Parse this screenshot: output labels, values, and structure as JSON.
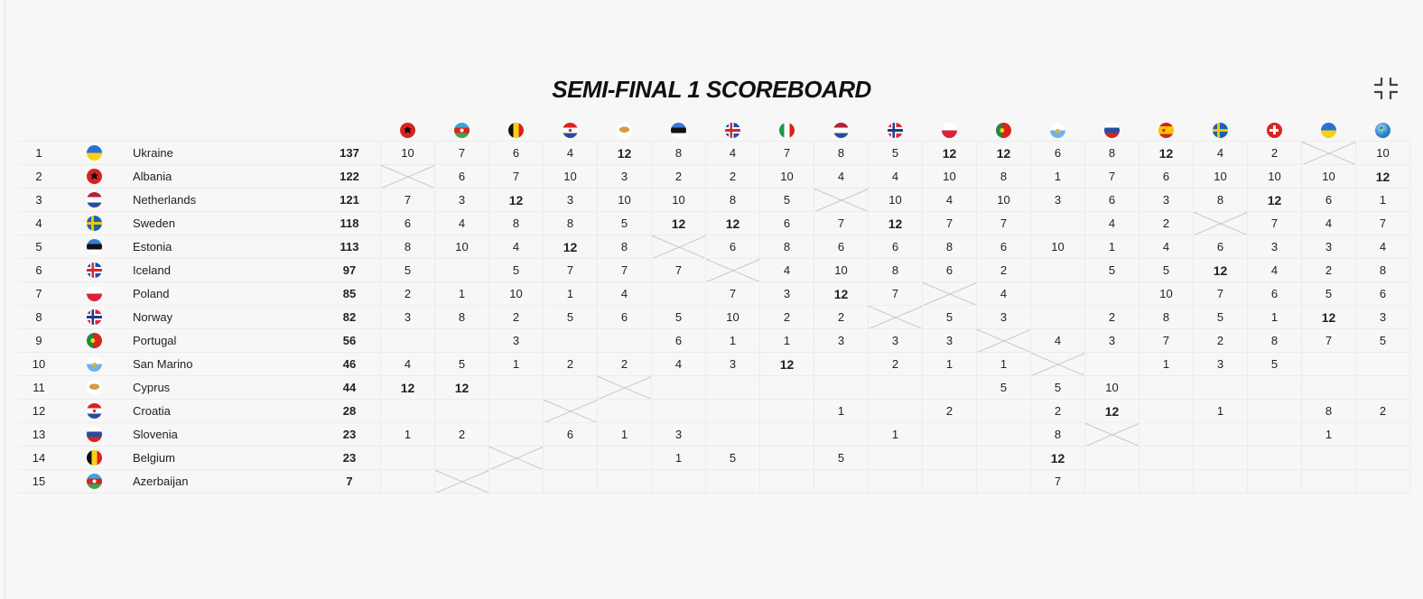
{
  "title": "SEMI-FINAL 1 SCOREBOARD",
  "collapse_icon": "compress-icon",
  "columns": [
    {
      "name": "Albania",
      "icon": "flag-albania-icon"
    },
    {
      "name": "Azerbaijan",
      "icon": "flag-azerbaijan-icon"
    },
    {
      "name": "Belgium",
      "icon": "flag-belgium-icon"
    },
    {
      "name": "Croatia",
      "icon": "flag-croatia-icon"
    },
    {
      "name": "Cyprus",
      "icon": "flag-cyprus-icon"
    },
    {
      "name": "Estonia",
      "icon": "flag-estonia-icon"
    },
    {
      "name": "Iceland",
      "icon": "flag-iceland-icon"
    },
    {
      "name": "Italy",
      "icon": "flag-italy-icon"
    },
    {
      "name": "Netherlands",
      "icon": "flag-netherlands-icon"
    },
    {
      "name": "Norway",
      "icon": "flag-norway-icon"
    },
    {
      "name": "Poland",
      "icon": "flag-poland-icon"
    },
    {
      "name": "Portugal",
      "icon": "flag-portugal-icon"
    },
    {
      "name": "San Marino",
      "icon": "flag-san-marino-icon"
    },
    {
      "name": "Slovenia",
      "icon": "flag-slovenia-icon"
    },
    {
      "name": "Spain",
      "icon": "flag-spain-icon"
    },
    {
      "name": "Sweden",
      "icon": "flag-sweden-icon"
    },
    {
      "name": "Switzerland",
      "icon": "flag-switzerland-icon"
    },
    {
      "name": "Ukraine",
      "icon": "flag-ukraine-icon"
    },
    {
      "name": "Rest of the World",
      "icon": "globe-icon"
    }
  ],
  "rows": [
    {
      "pos": "1",
      "country": "Ukraine",
      "flag": "flag-ukraine-icon",
      "total": "137",
      "self": 17,
      "points": [
        "10",
        "7",
        "6",
        "4",
        "12",
        "8",
        "4",
        "7",
        "8",
        "5",
        "12",
        "12",
        "6",
        "8",
        "12",
        "4",
        "2",
        "",
        "10"
      ]
    },
    {
      "pos": "2",
      "country": "Albania",
      "flag": "flag-albania-icon",
      "total": "122",
      "self": 0,
      "points": [
        "",
        "6",
        "7",
        "10",
        "3",
        "2",
        "2",
        "10",
        "4",
        "4",
        "10",
        "8",
        "1",
        "7",
        "6",
        "10",
        "10",
        "10",
        "12"
      ]
    },
    {
      "pos": "3",
      "country": "Netherlands",
      "flag": "flag-netherlands-icon",
      "total": "121",
      "self": 8,
      "points": [
        "7",
        "3",
        "12",
        "3",
        "10",
        "10",
        "8",
        "5",
        "",
        "10",
        "4",
        "10",
        "3",
        "6",
        "3",
        "8",
        "12",
        "6",
        "1"
      ]
    },
    {
      "pos": "4",
      "country": "Sweden",
      "flag": "flag-sweden-icon",
      "total": "118",
      "self": 15,
      "points": [
        "6",
        "4",
        "8",
        "8",
        "5",
        "12",
        "12",
        "6",
        "7",
        "12",
        "7",
        "7",
        "",
        "4",
        "2",
        "",
        "7",
        "4",
        "7"
      ]
    },
    {
      "pos": "5",
      "country": "Estonia",
      "flag": "flag-estonia-icon",
      "total": "113",
      "self": 5,
      "points": [
        "8",
        "10",
        "4",
        "12",
        "8",
        "",
        "6",
        "8",
        "6",
        "6",
        "8",
        "6",
        "10",
        "1",
        "4",
        "6",
        "3",
        "3",
        "4"
      ]
    },
    {
      "pos": "6",
      "country": "Iceland",
      "flag": "flag-iceland-icon",
      "total": "97",
      "self": 6,
      "points": [
        "5",
        "",
        "5",
        "7",
        "7",
        "7",
        "",
        "4",
        "10",
        "8",
        "6",
        "2",
        "",
        "5",
        "5",
        "12",
        "4",
        "2",
        "8"
      ]
    },
    {
      "pos": "7",
      "country": "Poland",
      "flag": "flag-poland-icon",
      "total": "85",
      "self": 10,
      "points": [
        "2",
        "1",
        "10",
        "1",
        "4",
        "",
        "7",
        "3",
        "12",
        "7",
        "",
        "4",
        "",
        "",
        "10",
        "7",
        "6",
        "5",
        "6"
      ]
    },
    {
      "pos": "8",
      "country": "Norway",
      "flag": "flag-norway-icon",
      "total": "82",
      "self": 9,
      "points": [
        "3",
        "8",
        "2",
        "5",
        "6",
        "5",
        "10",
        "2",
        "2",
        "",
        "5",
        "3",
        "",
        "2",
        "8",
        "5",
        "1",
        "12",
        "3"
      ]
    },
    {
      "pos": "9",
      "country": "Portugal",
      "flag": "flag-portugal-icon",
      "total": "56",
      "self": 11,
      "points": [
        "",
        "",
        "3",
        "",
        "",
        "6",
        "1",
        "1",
        "3",
        "3",
        "3",
        "",
        "4",
        "3",
        "7",
        "2",
        "8",
        "7",
        "5"
      ]
    },
    {
      "pos": "10",
      "country": "San Marino",
      "flag": "flag-san-marino-icon",
      "total": "46",
      "self": 12,
      "points": [
        "4",
        "5",
        "1",
        "2",
        "2",
        "4",
        "3",
        "12",
        "",
        "2",
        "1",
        "1",
        "",
        "",
        "1",
        "3",
        "5",
        "",
        ""
      ]
    },
    {
      "pos": "11",
      "country": "Cyprus",
      "flag": "flag-cyprus-icon",
      "total": "44",
      "self": 4,
      "points": [
        "12",
        "12",
        "",
        "",
        "",
        "",
        "",
        "",
        "",
        "",
        "",
        "5",
        "5",
        "10",
        "",
        "",
        "",
        "",
        ""
      ]
    },
    {
      "pos": "12",
      "country": "Croatia",
      "flag": "flag-croatia-icon",
      "total": "28",
      "self": 3,
      "points": [
        "",
        "",
        "",
        "",
        "",
        "",
        "",
        "",
        "1",
        "",
        "2",
        "",
        "2",
        "12",
        "",
        "1",
        "",
        "8",
        "2"
      ]
    },
    {
      "pos": "13",
      "country": "Slovenia",
      "flag": "flag-slovenia-icon",
      "total": "23",
      "self": 13,
      "points": [
        "1",
        "2",
        "",
        "6",
        "1",
        "3",
        "",
        "",
        "",
        "1",
        "",
        "",
        "8",
        "",
        "",
        "",
        "",
        "1",
        ""
      ]
    },
    {
      "pos": "14",
      "country": "Belgium",
      "flag": "flag-belgium-icon",
      "total": "23",
      "self": 2,
      "points": [
        "",
        "",
        "",
        "",
        "",
        "1",
        "5",
        "",
        "5",
        "",
        "",
        "",
        "12",
        "",
        "",
        "",
        "",
        "",
        ""
      ]
    },
    {
      "pos": "15",
      "country": "Azerbaijan",
      "flag": "flag-azerbaijan-icon",
      "total": "7",
      "self": 1,
      "points": [
        "",
        "",
        "",
        "",
        "",
        "",
        "",
        "",
        "",
        "",
        "",
        "",
        "7",
        "",
        "",
        "",
        "",
        "",
        ""
      ]
    }
  ]
}
